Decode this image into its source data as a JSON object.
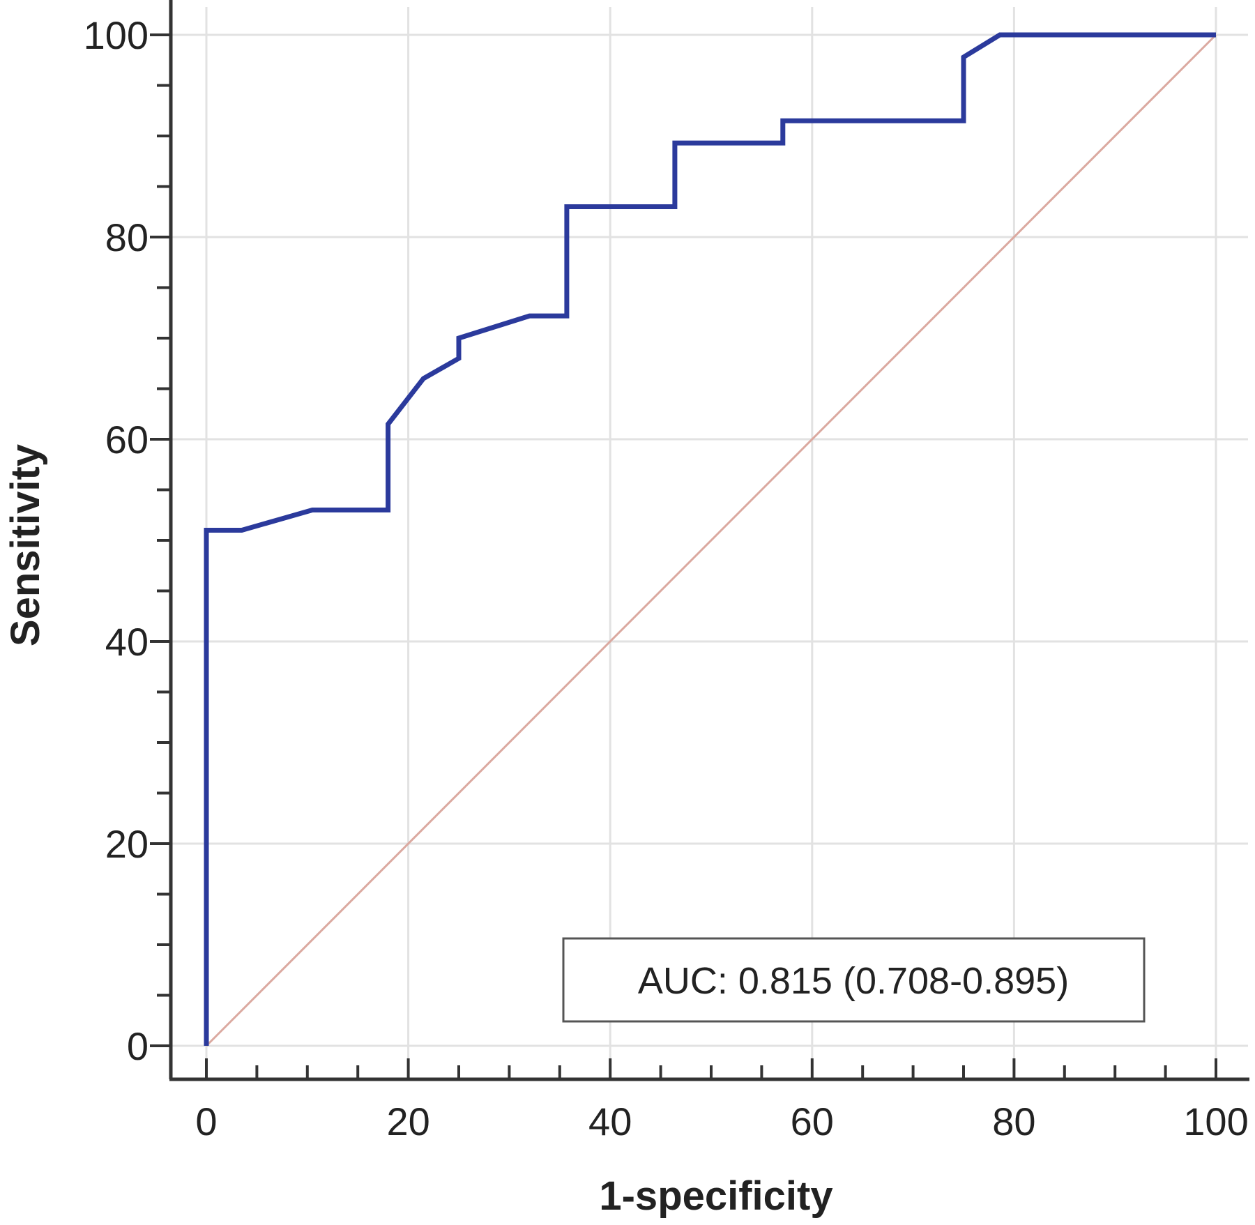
{
  "chart_data": {
    "type": "line",
    "title": "",
    "xlabel": "1-specificity",
    "ylabel": "Sensitivity",
    "xlim": [
      0,
      100
    ],
    "ylim": [
      0,
      100
    ],
    "x_ticks": [
      "0",
      "20",
      "40",
      "60",
      "80",
      "100"
    ],
    "y_ticks": [
      "0",
      "20",
      "40",
      "60",
      "80",
      "100"
    ],
    "grid": true,
    "legend": "none",
    "annotation": "AUC: 0.815 (0.708-0.895)",
    "annotation_position": "bottom-right",
    "series": [
      {
        "color": "#2b3a9c",
        "points": [
          [
            0,
            0
          ],
          [
            0,
            51
          ],
          [
            3.5,
            51
          ],
          [
            7,
            52
          ],
          [
            10.5,
            53
          ],
          [
            18,
            53
          ],
          [
            18,
            61.5
          ],
          [
            21.5,
            66
          ],
          [
            25,
            68
          ],
          [
            25,
            70
          ],
          [
            32,
            72.2
          ],
          [
            35.7,
            72.2
          ],
          [
            35.7,
            83
          ],
          [
            46.4,
            83
          ],
          [
            46.4,
            89.3
          ],
          [
            57.1,
            89.3
          ],
          [
            57.1,
            91.5
          ],
          [
            75,
            91.5
          ],
          [
            75,
            97.8
          ],
          [
            78.6,
            100
          ],
          [
            100,
            100
          ]
        ]
      },
      {
        "color": "#dba9a0",
        "points": [
          [
            0,
            0
          ],
          [
            100,
            100
          ]
        ]
      }
    ]
  }
}
